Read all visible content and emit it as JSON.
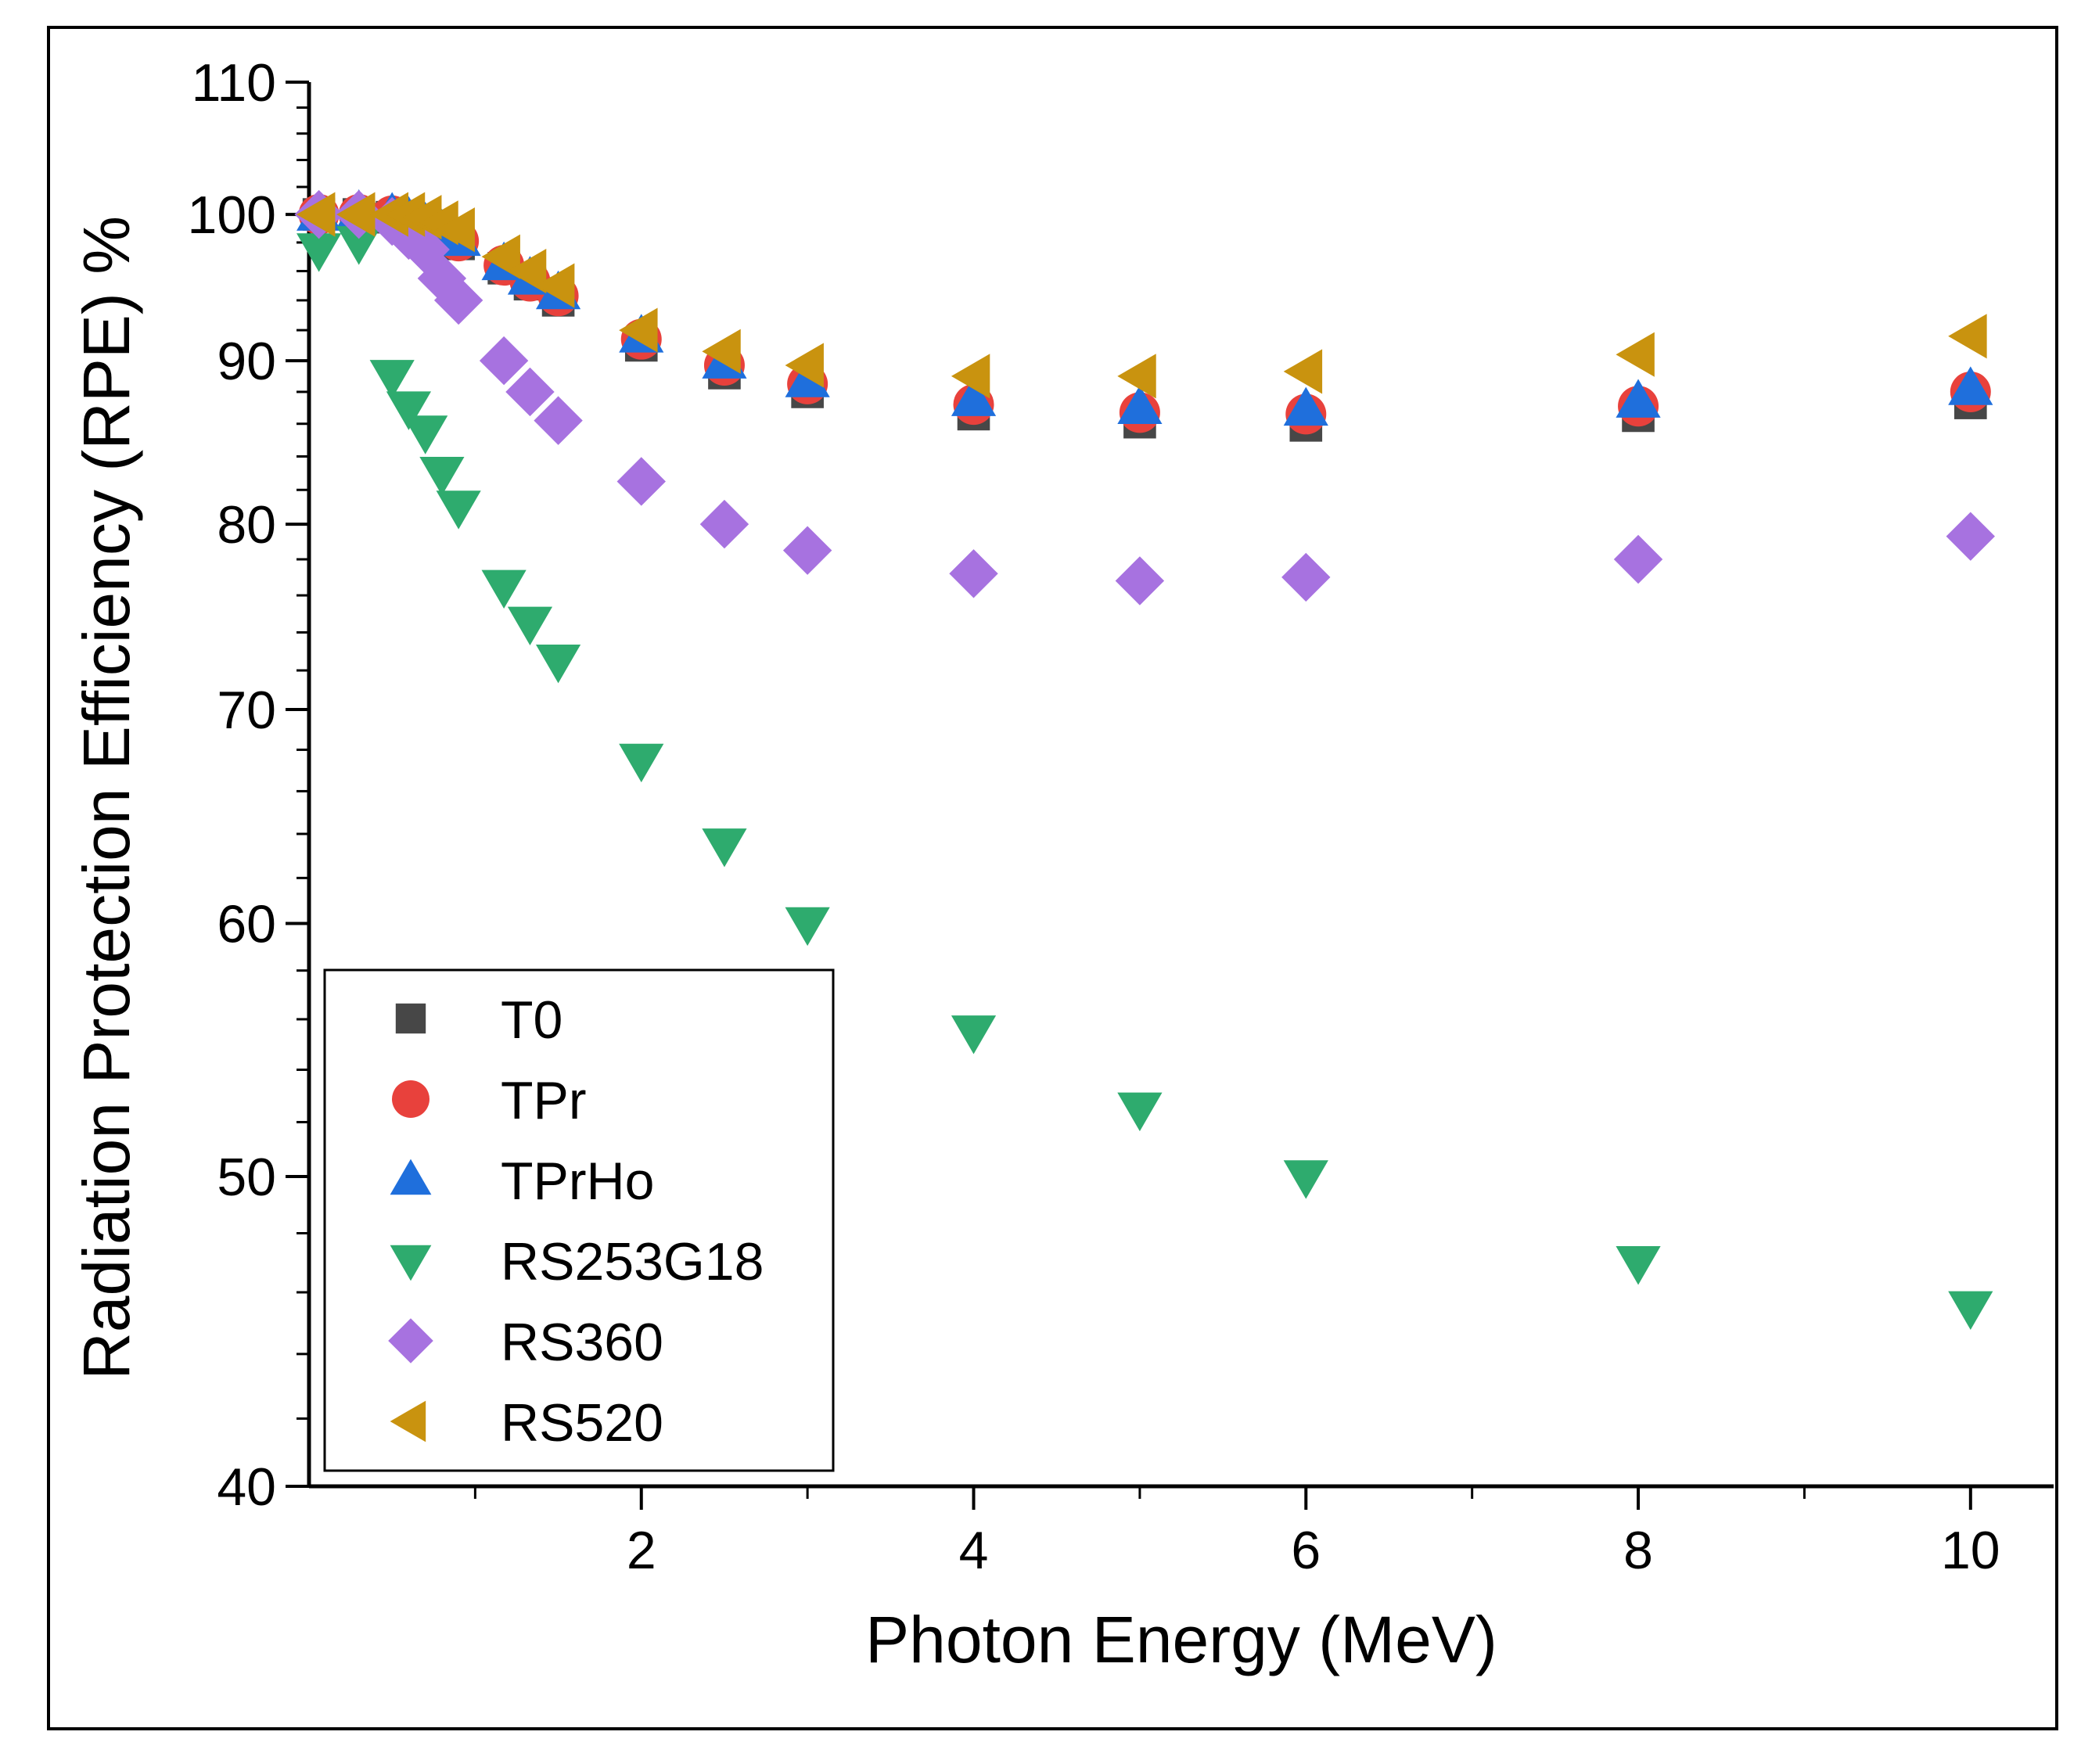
{
  "chart_data": {
    "type": "scatter",
    "title": "",
    "xlabel": "Photon Energy (MeV)",
    "ylabel": "Radiation Protection Efficiency (RPE) %",
    "x_scale": "linear",
    "y_scale": "log",
    "xlim": [
      0,
      10.5
    ],
    "ylim": [
      40,
      110
    ],
    "x_ticks": [
      2,
      4,
      6,
      8,
      10
    ],
    "x_tick_labels": [
      "2",
      "4",
      "6",
      "8",
      "10"
    ],
    "y_ticks": [
      40,
      50,
      60,
      70,
      80,
      90,
      100,
      110
    ],
    "y_tick_labels": [
      "40",
      "50",
      "60",
      "70",
      "80",
      "90",
      "100",
      "110"
    ],
    "grid": false,
    "legend_position": "bottom-left",
    "x": [
      0.0595,
      0.3,
      0.5,
      0.6,
      0.7,
      0.8,
      0.9,
      1.173,
      1.33,
      1.5,
      2,
      2.5,
      3,
      4,
      5,
      6,
      8,
      10
    ],
    "series": [
      {
        "name": "T0",
        "marker": "square",
        "color": "#474747",
        "values": [
          100,
          100,
          99.8,
          99.5,
          99.1,
          98.5,
          97.9,
          96.2,
          95.1,
          94.0,
          91.0,
          89.2,
          88.0,
          86.6,
          86.1,
          85.9,
          86.5,
          87.3
        ]
      },
      {
        "name": "TPr",
        "marker": "circle",
        "color": "#e8413c",
        "values": [
          100,
          100,
          99.9,
          99.6,
          99.2,
          98.7,
          98.1,
          96.4,
          95.3,
          94.3,
          91.4,
          89.7,
          88.5,
          87.2,
          86.7,
          86.6,
          87.1,
          88.0
        ]
      },
      {
        "name": "TPrHo",
        "marker": "triangle-up",
        "color": "#1f6fdc",
        "values": [
          100,
          100.2,
          100,
          99.7,
          99.3,
          98.8,
          98.2,
          96.5,
          95.5,
          94.5,
          91.6,
          89.9,
          88.7,
          87.5,
          87.0,
          86.9,
          87.4,
          88.2
        ]
      },
      {
        "name": "RS253G18",
        "marker": "triangle-down",
        "color": "#2eab6e",
        "values": [
          97.5,
          98.0,
          89.0,
          87.0,
          85.5,
          83.0,
          81.0,
          76.5,
          74.5,
          72.5,
          67.5,
          63.5,
          60.0,
          55.5,
          52.5,
          50.0,
          47.0,
          45.5
        ]
      },
      {
        "name": "RS360",
        "marker": "diamond",
        "color": "#a772e0",
        "values": [
          100,
          100,
          99.5,
          98.5,
          97.5,
          95.5,
          94.0,
          90.0,
          88.0,
          86.2,
          82.5,
          80.0,
          78.5,
          77.2,
          76.8,
          77.0,
          78.0,
          79.3
        ]
      },
      {
        "name": "RS520",
        "marker": "triangle-left",
        "color": "#c9930f",
        "values": [
          100,
          100,
          100,
          100,
          99.8,
          99.4,
          98.9,
          97.0,
          96.0,
          95.0,
          92.0,
          90.6,
          89.7,
          89.0,
          89.0,
          89.3,
          90.4,
          91.6
        ]
      }
    ]
  }
}
